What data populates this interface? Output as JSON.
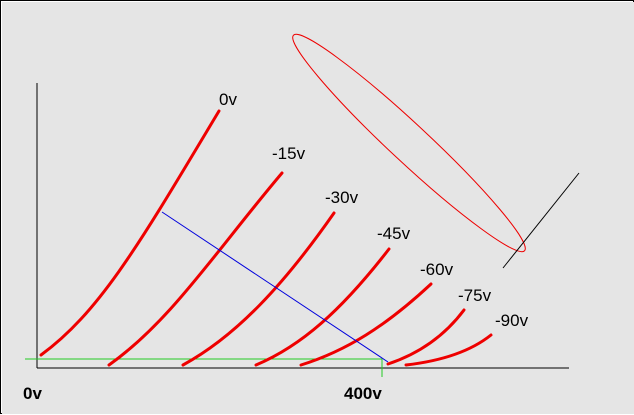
{
  "axis_labels": {
    "origin": "0v",
    "mark": "400v"
  },
  "curves": [
    {
      "label": "0v"
    },
    {
      "label": "-15v"
    },
    {
      "label": "-30v"
    },
    {
      "label": "-45v"
    },
    {
      "label": "-60v"
    },
    {
      "label": "-75v"
    },
    {
      "label": "-90v"
    }
  ],
  "colors": {
    "background": "#e5e5e5",
    "axis": "#000000",
    "curve": "#ee0000",
    "load_line": "#0000dd",
    "baseline": "#22cc22",
    "ellipse": "#ee0000",
    "tangent": "#000000"
  }
}
